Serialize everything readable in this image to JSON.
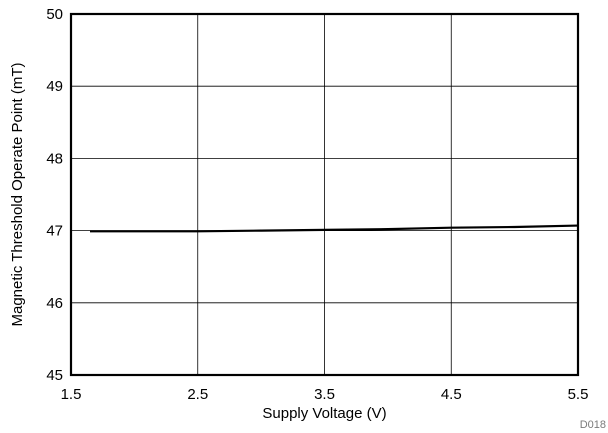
{
  "chart_data": {
    "type": "line",
    "title": "",
    "xlabel": "Supply Voltage (V)",
    "ylabel": "Magnetic Threshold Operate Point (mT)",
    "xlim": [
      1.5,
      5.5
    ],
    "ylim": [
      45,
      50
    ],
    "xticks": [
      "1.5",
      "2.5",
      "3.5",
      "4.5",
      "5.5"
    ],
    "yticks": [
      "45",
      "46",
      "47",
      "48",
      "49",
      "50"
    ],
    "grid": true,
    "series": [
      {
        "color": "#000000",
        "x": [
          1.65,
          2.0,
          2.5,
          3.0,
          3.5,
          4.0,
          4.5,
          5.0,
          5.5
        ],
        "y": [
          46.99,
          46.99,
          46.99,
          47.0,
          47.01,
          47.02,
          47.04,
          47.05,
          47.07
        ]
      }
    ],
    "note": "D018"
  }
}
